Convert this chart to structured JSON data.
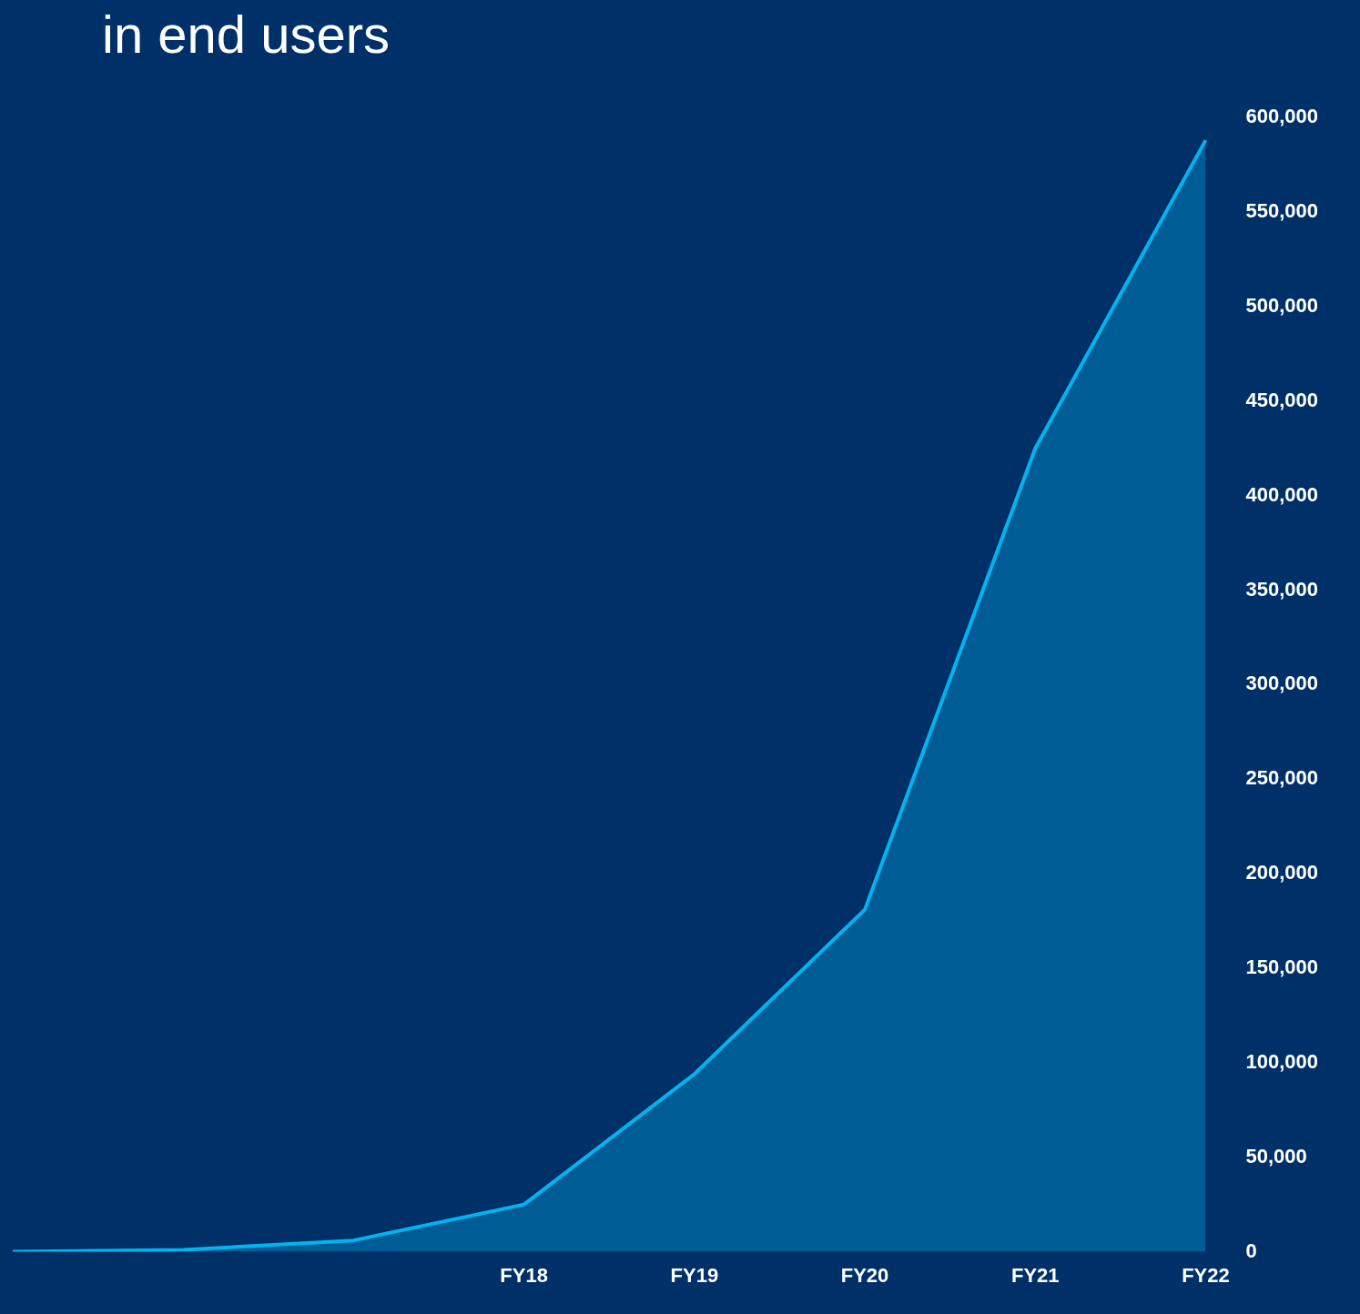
{
  "chart_data": {
    "type": "area",
    "title": "in end users",
    "categories": [
      null,
      null,
      null,
      "FY18",
      "FY19",
      "FY20",
      "FY21",
      "FY22"
    ],
    "series": [
      {
        "color": "#00b4f0",
        "values": [
          0,
          1000,
          6000,
          25000,
          94000,
          181000,
          425000,
          588000
        ]
      }
    ],
    "ylim": [
      0,
      600000
    ],
    "yticks": [
      0,
      {
        "value": 50000,
        "label": "50,000"
      },
      {
        "value": 100000,
        "label": "100,000"
      },
      {
        "value": 150000,
        "label": "150,000"
      },
      {
        "value": 200000,
        "label": "200,000"
      },
      {
        "value": 250000,
        "label": "250,000"
      },
      {
        "value": 300000,
        "label": "300,000"
      },
      {
        "value": 350000,
        "label": "350,000"
      },
      {
        "value": 400000,
        "label": "400,000"
      },
      {
        "value": 450000,
        "label": "450,000"
      },
      {
        "value": 500000,
        "label": "500,000"
      },
      {
        "value": 550000,
        "label": "550,000"
      },
      {
        "value": 600000,
        "label": "600,000"
      }
    ],
    "grid": false,
    "legend": false
  }
}
